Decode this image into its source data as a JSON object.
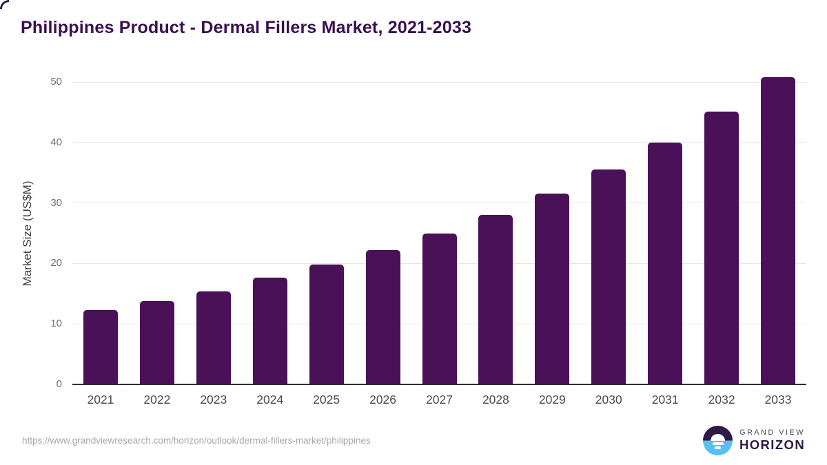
{
  "page": {
    "title": "Philippines Product - Dermal Fillers Market, 2021-2033",
    "source_url": "https://www.grandviewresearch.com/horizon/outlook/dermal-fillers-market/philippines"
  },
  "branding": {
    "name_top": "GRAND VIEW",
    "name_bottom": "HORIZON",
    "icon": "sun-over-horizon-icon"
  },
  "colors": {
    "bar": "#4a1158",
    "title": "#3a0f52",
    "gridline": "#e6e6e6",
    "axis_line": "#2d2d2d",
    "y_tick_label": "#6f6f6f",
    "x_tick_label": "#4a4a4a",
    "source_url": "#a8a8a8",
    "logo_dark": "#2e1a47",
    "logo_blue": "#56c1f1"
  },
  "chart_data": {
    "type": "bar",
    "title": "Philippines Product - Dermal Fillers Market, 2021-2033",
    "categories": [
      "2021",
      "2022",
      "2023",
      "2024",
      "2025",
      "2026",
      "2027",
      "2028",
      "2029",
      "2030",
      "2031",
      "2032",
      "2033"
    ],
    "values": [
      12.3,
      13.8,
      15.4,
      17.7,
      19.8,
      22.2,
      25.0,
      28.0,
      31.5,
      35.5,
      40.0,
      45.1,
      50.8
    ],
    "xlabel": "",
    "ylabel": "Market Size (US$M)",
    "ylim": [
      0,
      50
    ],
    "yticks": [
      0,
      10,
      20,
      30,
      40,
      50
    ],
    "grid": true,
    "legend_position": "none"
  }
}
